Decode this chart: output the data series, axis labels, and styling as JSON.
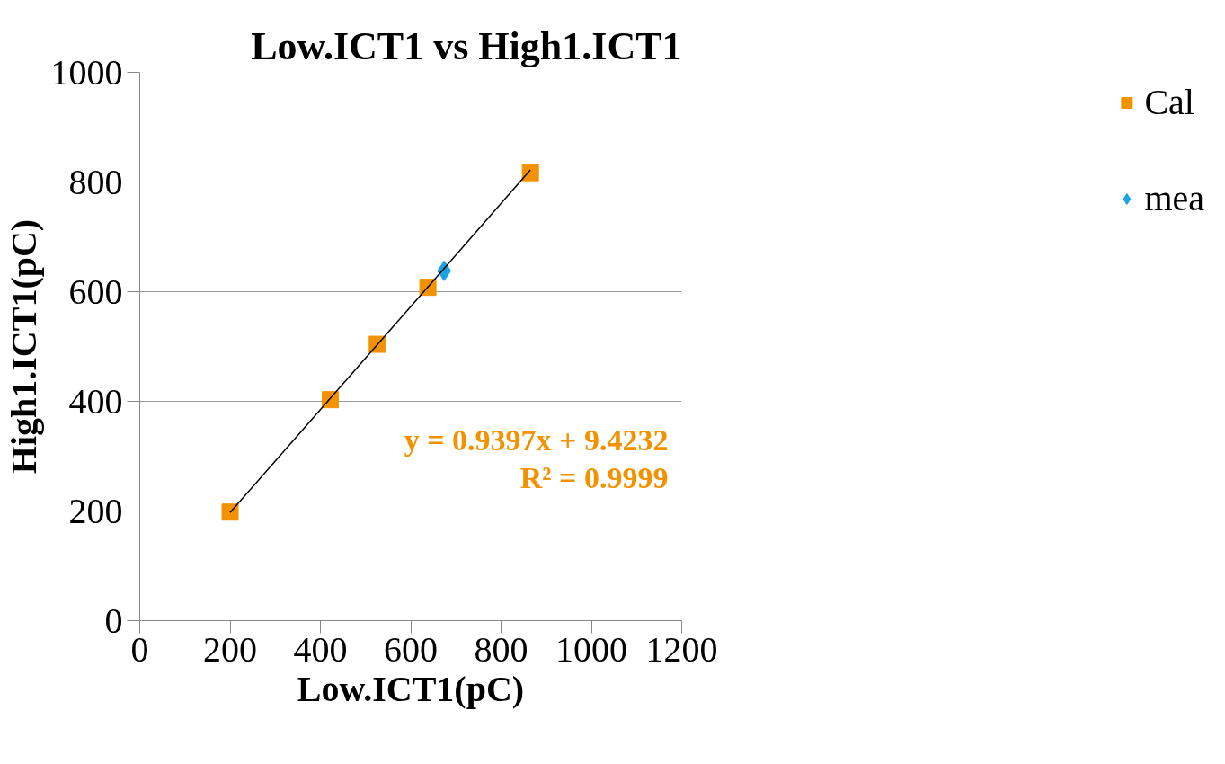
{
  "chart_data": {
    "type": "scatter",
    "title": "Low.ICT1 vs High1.ICT1",
    "xlabel": "Low.ICT1(pC)",
    "ylabel": "High1.ICT1(pC)",
    "xlim": [
      0,
      1200
    ],
    "xticks": [
      0,
      200,
      400,
      600,
      800,
      1000,
      1200
    ],
    "ylim": [
      0,
      1000
    ],
    "yticks": [
      0,
      200,
      400,
      600,
      800,
      1000
    ],
    "grid": "y",
    "legend": "right",
    "series": [
      {
        "name": "Cal",
        "color": "#f39200",
        "marker": "square",
        "x": [
          200,
          422,
          526,
          638,
          865
        ],
        "values": [
          198,
          403,
          504,
          608,
          817
        ]
      },
      {
        "name": "mea",
        "color": "#1aa3e0",
        "marker": "diamond",
        "x": [
          674
        ],
        "values": [
          638
        ]
      },
      {
        "type": "line",
        "color": "#000000",
        "marker": "none",
        "x": [
          200,
          865
        ],
        "values": [
          197,
          822
        ]
      }
    ],
    "annotations": [
      "y = 0.9397x + 9.4232",
      "R² = 0.9999"
    ]
  }
}
